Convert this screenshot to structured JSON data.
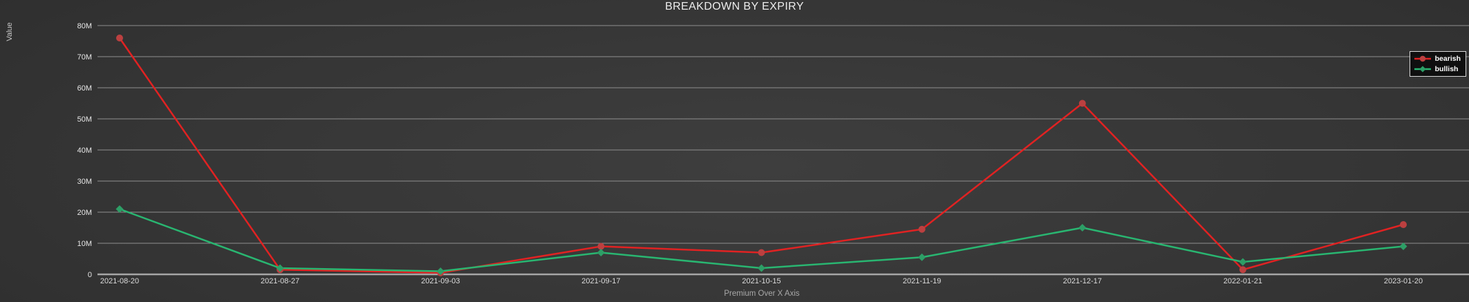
{
  "title": "BREAKDOWN BY EXPIRY",
  "chart_data": {
    "type": "line",
    "title": "BREAKDOWN BY EXPIRY",
    "xlabel": "Premium Over X Axis",
    "ylabel": "Value",
    "x": [
      "2021-08-20",
      "2021-08-27",
      "2021-09-03",
      "2021-09-17",
      "2021-10-15",
      "2021-11-19",
      "2021-12-17",
      "2022-01-21",
      "2023-01-20"
    ],
    "series": [
      {
        "name": "bearish",
        "marker": "circle",
        "line_color": "#e12222",
        "marker_color": "#bc4040",
        "values_millions": [
          76,
          1.5,
          0.5,
          9,
          7,
          14.5,
          55,
          1.5,
          16
        ]
      },
      {
        "name": "bullish",
        "marker": "diamond",
        "line_color": "#29b671",
        "marker_color": "#2d9e66",
        "values_millions": [
          21,
          2,
          1,
          7,
          2,
          5.5,
          15,
          4,
          9
        ]
      }
    ],
    "ylim_millions": [
      0,
      80
    ],
    "ytick_step_millions": 10,
    "ytick_suffix": "M",
    "ytick_labels": [
      "0",
      "10M",
      "20M",
      "30M",
      "40M",
      "50M",
      "60M",
      "70M",
      "80M"
    ],
    "grid": "horizontal-only",
    "legend_position": "top-right",
    "legend_entries": [
      "bearish",
      "bullish"
    ]
  },
  "colors": {
    "background_center": "#3e3e3e",
    "background_edge": "#242424",
    "gridline": "#8f8f8f",
    "axis_line": "#a6a6a6",
    "title_text": "#ededed",
    "tick_text": "#e6e6e6",
    "axis_title_text": "#a9a9a9",
    "legend_border": "#d9d9d9",
    "legend_text": "#ffffff"
  }
}
